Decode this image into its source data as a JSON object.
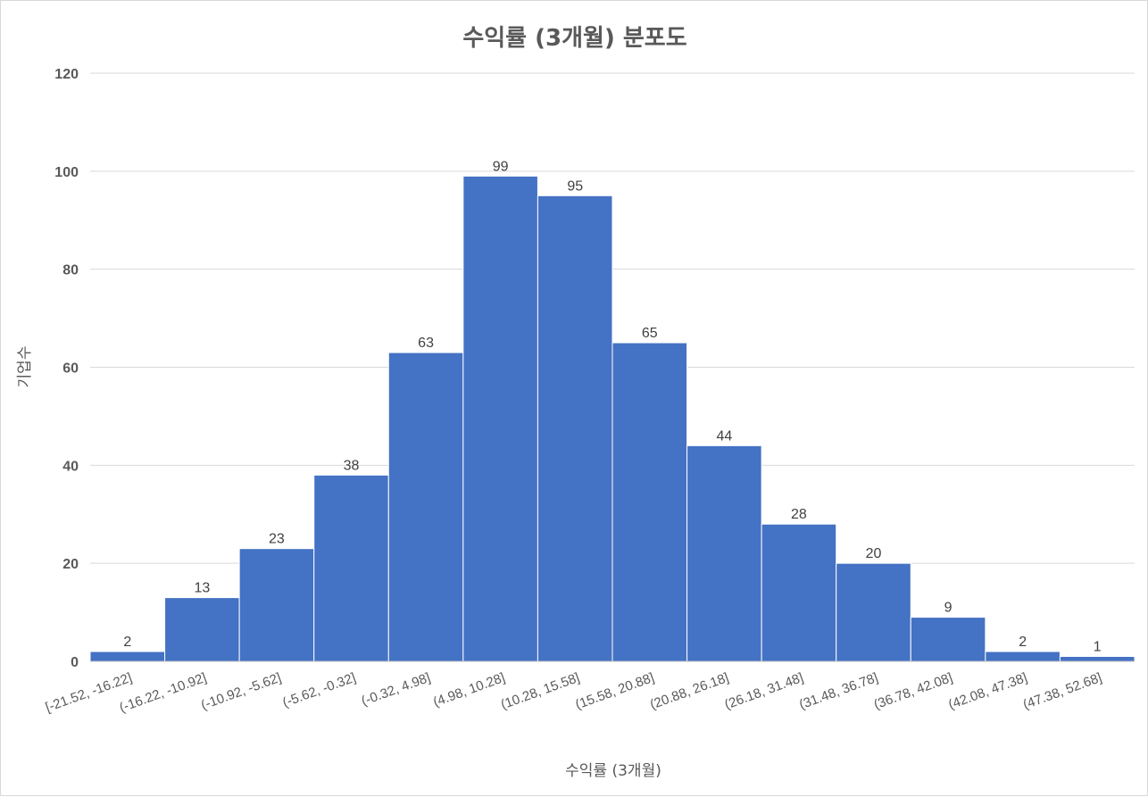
{
  "chart_data": {
    "type": "bar",
    "title": "수익률 (3개월) 분포도",
    "xlabel": "수익률 (3개월)",
    "ylabel": "기업수",
    "categories": [
      "[-21.52, -16.22]",
      "(-16.22, -10.92]",
      "(-10.92, -5.62]",
      "(-5.62, -0.32]",
      "(-0.32, 4.98]",
      "(4.98, 10.28]",
      "(10.28, 15.58]",
      "(15.58, 20.88]",
      "(20.88, 26.18]",
      "(26.18, 31.48]",
      "(31.48, 36.78]",
      "(36.78, 42.08]",
      "(42.08, 47.38]",
      "(47.38, 52.68]"
    ],
    "values": [
      2,
      13,
      23,
      38,
      63,
      99,
      95,
      65,
      44,
      28,
      20,
      9,
      2,
      1
    ],
    "ylim": [
      0,
      120
    ],
    "yticks": [
      "0",
      "20",
      "40",
      "60",
      "80",
      "100",
      "120"
    ],
    "grid": true,
    "legend": "none",
    "bar_color": "#4472C4",
    "data_labels": true
  }
}
